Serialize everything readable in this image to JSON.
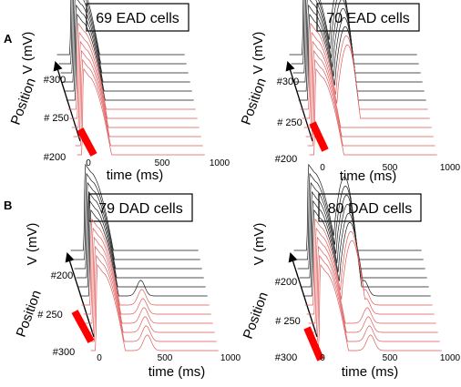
{
  "panel_letters": [
    "A",
    "B"
  ],
  "chart_data": [
    {
      "type": "line",
      "title": "69 EAD cells",
      "ylabel": "V (mV)",
      "xlabel": "time (ms)",
      "xticks": [
        "0",
        "500",
        "1000"
      ],
      "position_label": "Position",
      "position_ticks": [
        "#200",
        "# 250",
        "#300"
      ],
      "colors": {
        "upper_traces": "#1a1a1a",
        "lower_traces": "#e05a5a",
        "ead_region": "#ff0000"
      },
      "traces": 12,
      "eads": false,
      "dads": false
    },
    {
      "type": "line",
      "title": "70 EAD cells",
      "ylabel": "V (mV)",
      "xlabel": "time (ms)",
      "xticks": [
        "0",
        "500",
        "1000"
      ],
      "position_label": "Position",
      "position_ticks": [
        "#200",
        "# 250",
        "#300"
      ],
      "colors": {
        "upper_traces": "#1a1a1a",
        "lower_traces": "#e05a5a",
        "ead_region": "#ff0000"
      },
      "traces": 12,
      "eads": true,
      "dads": false
    },
    {
      "type": "line",
      "title": "79 DAD cells",
      "ylabel": "V (mV)",
      "xlabel": "time (ms)",
      "xticks": [
        "0",
        "500",
        "1000"
      ],
      "position_label": "Position",
      "position_ticks": [
        "#200",
        "# 250",
        "#300"
      ],
      "colors": {
        "upper_traces": "#1a1a1a",
        "lower_traces": "#e05a5a",
        "ead_region": "#ff0000"
      },
      "traces": 12,
      "eads": false,
      "dads": true
    },
    {
      "type": "line",
      "title": "80 DAD cells",
      "ylabel": "V (mV)",
      "xlabel": "time (ms)",
      "xticks": [
        "0",
        "500",
        "1000"
      ],
      "position_label": "Position",
      "position_ticks": [
        "#200",
        "# 250",
        "#300"
      ],
      "colors": {
        "upper_traces": "#1a1a1a",
        "lower_traces": "#e05a5a",
        "ead_region": "#ff0000"
      },
      "traces": 12,
      "eads": true,
      "dads": true
    }
  ]
}
